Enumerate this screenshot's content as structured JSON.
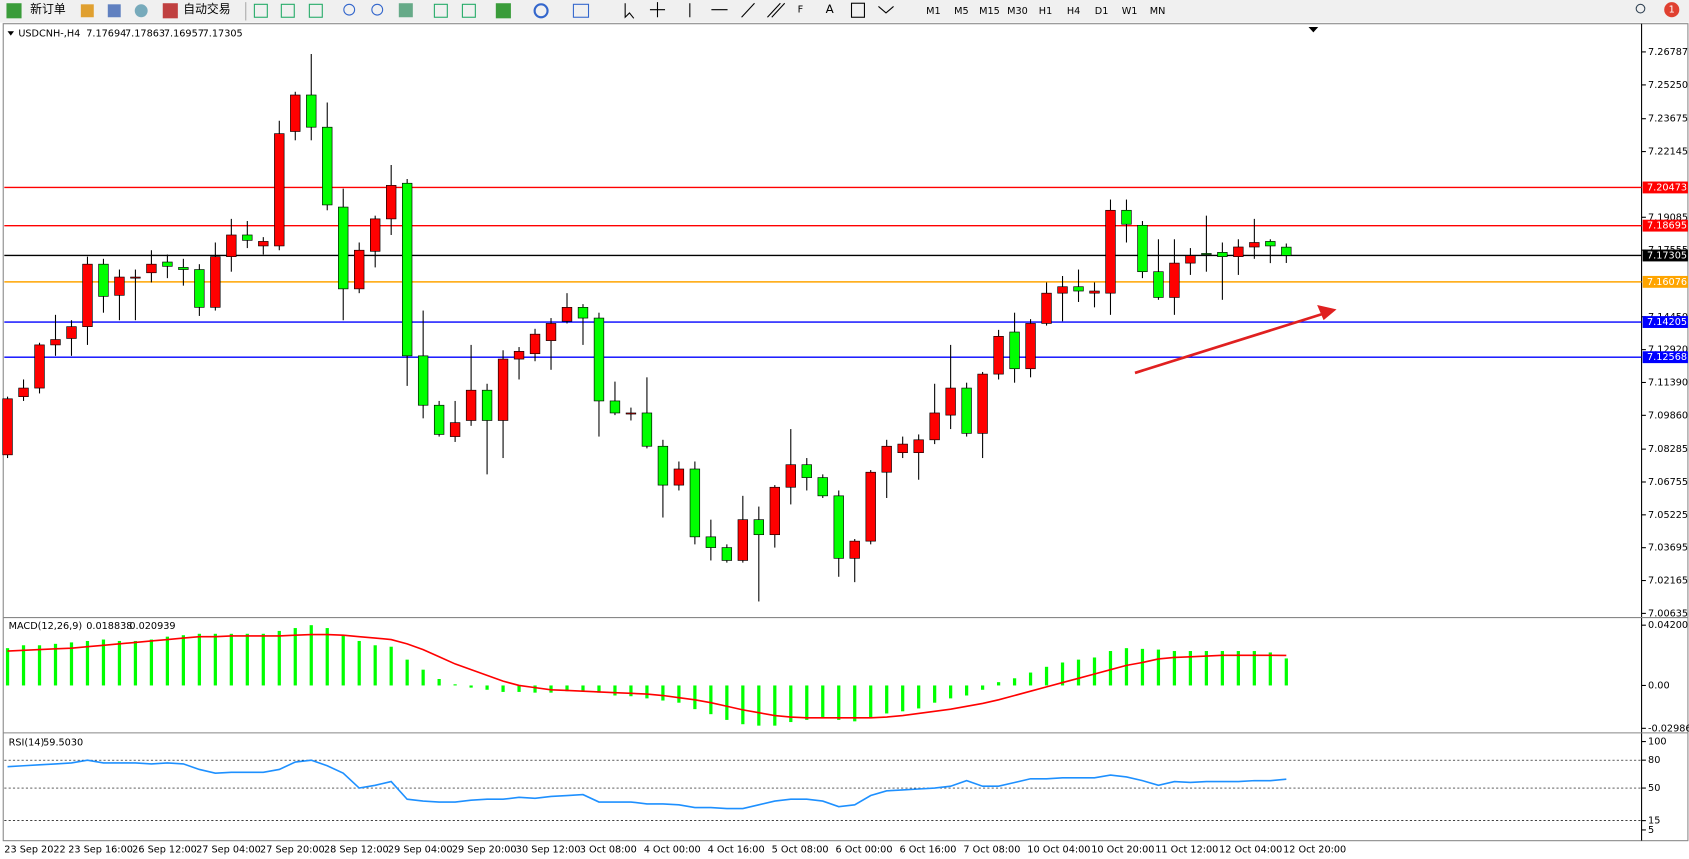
{
  "toolbar": {
    "new_order": "新订单",
    "auto_trading": "自动交易",
    "text_tool": "A",
    "timeframes": [
      "M1",
      "M5",
      "M15",
      "M30",
      "H1",
      "H4",
      "D1",
      "W1",
      "MN"
    ],
    "notifications": "1"
  },
  "chart_data": [
    {
      "type": "candlestick",
      "title": "USDCNH-,H4",
      "up_color": "#ff0000",
      "down_color": "#00ff00",
      "categories": [
        "23 Sep 2022",
        null,
        null,
        null,
        "23 Sep 16:00",
        null,
        null,
        null,
        "26 Sep 12:00",
        null,
        null,
        null,
        "27 Sep 04:00",
        null,
        null,
        null,
        "27 Sep 20:00",
        null,
        null,
        null,
        "28 Sep 12:00",
        null,
        null,
        null,
        "29 Sep 04:00",
        null,
        null,
        null,
        "29 Sep 20:00",
        null,
        null,
        null,
        "30 Sep 12:00",
        null,
        null,
        null,
        "3 Oct 08:00",
        null,
        null,
        null,
        "4 Oct 00:00",
        null,
        null,
        null,
        "4 Oct 16:00",
        null,
        null,
        null,
        "5 Oct 08:00",
        null,
        null,
        null,
        "6 Oct 00:00",
        null,
        null,
        null,
        "6 Oct 16:00",
        null,
        null,
        null,
        "7 Oct 08:00",
        null,
        null,
        null,
        "10 Oct 04:00",
        null,
        null,
        null,
        "10 Oct 20:00",
        null,
        null,
        null,
        "11 Oct 12:00",
        null,
        null,
        null,
        "12 Oct 04:00",
        null,
        null,
        null,
        "12 Oct 20:00"
      ],
      "open": [
        7.0802,
        7.1073,
        7.1113,
        7.1314,
        7.1344,
        7.1399,
        7.169,
        7.1545,
        7.1625,
        7.165,
        7.17,
        7.1675,
        7.1665,
        7.1489,
        7.1725,
        7.1826,
        7.1775,
        7.1775,
        7.2308,
        7.2478,
        7.2328,
        7.1956,
        7.1575,
        7.175,
        7.1901,
        7.2067,
        7.1263,
        7.1033,
        7.0887,
        7.0962,
        7.1103,
        7.0962,
        7.1248,
        7.1273,
        7.1334,
        7.1424,
        7.1489,
        7.1439,
        7.1053,
        7.0992,
        7.0997,
        7.0842,
        7.0661,
        7.0736,
        7.042,
        7.037,
        7.031,
        7.05,
        7.043,
        7.0651,
        7.0756,
        7.0696,
        7.0611,
        7.032,
        7.04,
        7.0721,
        7.0812,
        7.0812,
        7.0872,
        7.0987,
        7.1113,
        7.0902,
        7.1178,
        7.1374,
        7.1203,
        7.1414,
        7.1555,
        7.1585,
        7.1555,
        7.1555,
        7.1941,
        7.1871,
        7.1655,
        7.1535,
        7.1695,
        7.174,
        7.1745,
        7.1725,
        7.177,
        7.1796,
        7.17694
      ],
      "high": [
        7.1073,
        7.1153,
        7.1324,
        7.1454,
        7.1429,
        7.1725,
        7.1715,
        7.1665,
        7.1665,
        7.1755,
        7.1735,
        7.1715,
        7.169,
        7.1791,
        7.1901,
        7.1891,
        7.1816,
        7.2358,
        7.2493,
        7.2669,
        7.2443,
        7.2042,
        7.1791,
        7.1916,
        7.2152,
        7.2087,
        7.1474,
        7.1053,
        7.1053,
        7.1314,
        7.1133,
        7.1289,
        7.1304,
        7.1389,
        7.1439,
        7.1555,
        7.1504,
        7.1464,
        7.1143,
        7.1022,
        7.1163,
        7.0872,
        7.0771,
        7.0771,
        7.05,
        7.0385,
        7.0611,
        7.0561,
        7.0661,
        7.0922,
        7.0787,
        7.0711,
        7.0636,
        7.041,
        7.0731,
        7.0872,
        7.0887,
        7.0897,
        7.1133,
        7.1314,
        7.1138,
        7.1188,
        7.1384,
        7.1464,
        7.1434,
        7.1605,
        7.1635,
        7.1665,
        7.1605,
        7.1991,
        7.1991,
        7.1891,
        7.1806,
        7.1806,
        7.1765,
        7.1916,
        7.1791,
        7.1806,
        7.1901,
        7.1806,
        7.17863
      ],
      "low": [
        7.0787,
        7.1053,
        7.1088,
        7.1263,
        7.1263,
        7.1314,
        7.1464,
        7.1429,
        7.1429,
        7.1605,
        7.1625,
        7.159,
        7.1449,
        7.1474,
        7.1655,
        7.1765,
        7.1735,
        7.1755,
        7.2267,
        7.2267,
        7.1941,
        7.1429,
        7.1555,
        7.1675,
        7.1826,
        7.1123,
        7.0972,
        7.0887,
        7.0862,
        7.0937,
        7.0711,
        7.0787,
        7.1153,
        7.1238,
        7.1198,
        7.1414,
        7.1314,
        7.0887,
        7.0987,
        7.0962,
        7.0832,
        7.051,
        7.0636,
        7.0385,
        7.031,
        7.03,
        7.03,
        7.0119,
        7.037,
        7.0571,
        7.0636,
        7.0601,
        7.0234,
        7.0209,
        7.0385,
        7.0601,
        7.0787,
        7.0686,
        7.0852,
        7.0922,
        7.0887,
        7.0787,
        7.1153,
        7.1138,
        7.1163,
        7.1404,
        7.1424,
        7.1514,
        7.1489,
        7.1454,
        7.1791,
        7.1625,
        7.1524,
        7.1454,
        7.164,
        7.1655,
        7.1524,
        7.164,
        7.1715,
        7.1695,
        7.16957
      ],
      "close": [
        7.1063,
        7.1113,
        7.1314,
        7.1339,
        7.1399,
        7.169,
        7.154,
        7.163,
        7.163,
        7.169,
        7.168,
        7.1665,
        7.1489,
        7.1725,
        7.1826,
        7.1801,
        7.1796,
        7.2298,
        7.2478,
        7.2328,
        7.1966,
        7.1575,
        7.1755,
        7.1901,
        7.2057,
        7.1263,
        7.1033,
        7.0897,
        7.0952,
        7.1103,
        7.0962,
        7.1248,
        7.1284,
        7.1364,
        7.1414,
        7.1489,
        7.1439,
        7.1053,
        7.0997,
        7.0997,
        7.0842,
        7.0661,
        7.0736,
        7.042,
        7.037,
        7.031,
        7.05,
        7.043,
        7.0651,
        7.0756,
        7.0696,
        7.0611,
        7.032,
        7.04,
        7.0721,
        7.0842,
        7.0852,
        7.0872,
        7.0997,
        7.1113,
        7.0902,
        7.1178,
        7.1354,
        7.1203,
        7.1414,
        7.1555,
        7.1585,
        7.1565,
        7.1565,
        7.1941,
        7.1876,
        7.1655,
        7.1535,
        7.1695,
        7.173,
        7.1735,
        7.1725,
        7.177,
        7.1791,
        7.1775,
        7.17305
      ],
      "ylim": [
        7.0049,
        7.28
      ],
      "yticks": [
        7.26787,
        {
          "value": 7.2525,
          "label": "7.25250"
        },
        7.23675,
        7.22145,
        7.19085,
        7.17555,
        {
          "value": 7.1445,
          "label": "7.14450"
        },
        {
          "value": 7.1292,
          "label": "7.12920"
        },
        {
          "value": 7.1139,
          "label": "7.11390"
        },
        {
          "value": 7.0986,
          "label": "7.09860"
        },
        7.08285,
        7.06755,
        7.05225,
        7.03695,
        7.02165,
        7.00635
      ],
      "hlines": [
        {
          "value": 7.20473,
          "color": "#ff0000"
        },
        {
          "value": 7.18695,
          "color": "#ff0000"
        },
        {
          "value": 7.17305,
          "color": "#000000"
        },
        {
          "value": 7.16076,
          "color": "#ffa500"
        },
        {
          "value": 7.14205,
          "color": "#0000ff"
        },
        {
          "value": 7.12568,
          "color": "#0000ff"
        }
      ]
    },
    {
      "type": "macd",
      "title": "MACD(12,26,9)",
      "ylim": [
        -0.0323,
        0.0458
      ],
      "yticks": [
        0.042001,
        {
          "value": 0,
          "label": "0.00"
        },
        -0.029864
      ],
      "series": [
        {
          "color": "#00ff00",
          "values": [
            0.026,
            0.028,
            0.028,
            0.029,
            0.03,
            0.031,
            0.032,
            0.031,
            0.031,
            0.032,
            0.034,
            0.035,
            0.036,
            0.036,
            0.036,
            0.036,
            0.036,
            0.038,
            0.04,
            0.042,
            0.04,
            0.035,
            0.031,
            0.028,
            0.027,
            0.018,
            0.011,
            0.0045,
            0.0008,
            -0.0015,
            -0.003,
            -0.0045,
            -0.0045,
            -0.005,
            -0.005,
            -0.004,
            -0.004,
            -0.005,
            -0.007,
            -0.0075,
            -0.009,
            -0.0105,
            -0.012,
            -0.0165,
            -0.02,
            -0.024,
            -0.027,
            -0.028,
            -0.028,
            -0.0255,
            -0.024,
            -0.023,
            -0.024,
            -0.025,
            -0.0225,
            -0.0195,
            -0.018,
            -0.016,
            -0.012,
            -0.009,
            -0.007,
            -0.003,
            0.0023,
            0.005,
            0.009,
            0.013,
            0.016,
            0.018,
            0.0195,
            0.024,
            0.026,
            0.0255,
            0.025,
            0.024,
            0.024,
            0.024,
            0.024,
            0.024,
            0.024,
            0.023,
            0.018838
          ]
        },
        {
          "color": "#ff0000",
          "values": [
            0.024,
            0.0245,
            0.025,
            0.0255,
            0.026,
            0.027,
            0.028,
            0.029,
            0.03,
            0.031,
            0.032,
            0.033,
            0.034,
            0.034,
            0.0345,
            0.0345,
            0.0345,
            0.0345,
            0.035,
            0.0355,
            0.0355,
            0.035,
            0.034,
            0.033,
            0.032,
            0.029,
            0.025,
            0.02,
            0.015,
            0.011,
            0.007,
            0.003,
            0,
            -0.0015,
            -0.003,
            -0.0035,
            -0.004,
            -0.0045,
            -0.005,
            -0.0055,
            -0.006,
            -0.007,
            -0.0085,
            -0.01,
            -0.012,
            -0.0145,
            -0.017,
            -0.019,
            -0.021,
            -0.022,
            -0.0225,
            -0.0225,
            -0.0225,
            -0.0225,
            -0.0225,
            -0.022,
            -0.021,
            -0.0195,
            -0.018,
            -0.0165,
            -0.0145,
            -0.0125,
            -0.01,
            -0.007,
            -0.004,
            -0.001,
            0.002,
            0.005,
            0.008,
            0.011,
            0.014,
            0.016,
            0.0185,
            0.0195,
            0.02,
            0.0205,
            0.021,
            0.021,
            0.021,
            0.021,
            0.020939
          ]
        }
      ]
    },
    {
      "type": "rsi",
      "title": "RSI(14)",
      "current": {
        "value": 59.503,
        "label": "59.5030"
      },
      "ylim": [
        -5.4,
        107
      ],
      "yticks": [
        100,
        80,
        50,
        15,
        5
      ],
      "levels": [
        80,
        50,
        15
      ],
      "series": [
        {
          "color": "#1e90ff",
          "values": [
            73,
            74,
            75,
            76,
            77,
            80,
            77,
            77,
            77,
            76,
            77,
            76,
            70,
            66,
            67,
            67,
            67,
            70,
            78,
            80,
            74,
            66,
            50,
            53,
            57,
            38,
            36,
            35,
            35,
            37,
            38,
            38,
            40,
            39,
            41,
            42,
            43,
            35,
            35,
            35,
            33,
            33,
            32,
            29,
            29,
            28,
            28,
            32,
            36,
            38,
            38,
            36,
            30,
            32,
            42,
            47,
            48,
            49,
            50,
            52,
            58,
            52,
            52,
            56,
            60,
            60,
            61,
            61,
            61,
            64,
            62,
            58,
            53,
            57,
            56,
            57,
            57,
            57,
            58,
            58,
            59.503
          ]
        }
      ]
    }
  ]
}
